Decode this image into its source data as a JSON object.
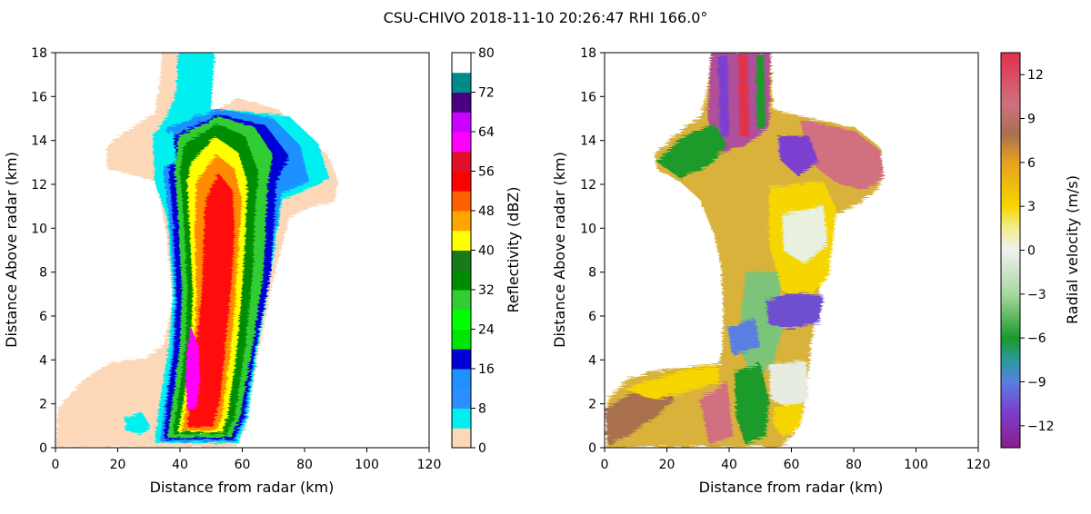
{
  "figure_title": "CSU-CHIVO 2018-11-10 20:26:47 RHI 166.0°",
  "chart_data": [
    {
      "type": "heatmap",
      "variable": "reflectivity",
      "xlabel": "Distance from radar (km)",
      "ylabel": "Distance Above radar  (km)",
      "xlim": [
        0,
        120
      ],
      "ylim": [
        0,
        18
      ],
      "xticks": [
        "0",
        "20",
        "40",
        "60",
        "80",
        "100",
        "120"
      ],
      "yticks": [
        "0",
        "2",
        "4",
        "6",
        "8",
        "10",
        "12",
        "14",
        "16",
        "18"
      ],
      "colorbar": {
        "label": "Reflectivity (dBZ)",
        "range": [
          0,
          80
        ],
        "tick_labels": [
          "0",
          "8",
          "16",
          "24",
          "32",
          "40",
          "48",
          "56",
          "64",
          "72",
          "80"
        ],
        "levels": [
          {
            "from": 0,
            "to": 4,
            "color": "#fcd7b8"
          },
          {
            "from": 4,
            "to": 8,
            "color": "#00f0f0"
          },
          {
            "from": 8,
            "to": 12,
            "color": "#2c8fff"
          },
          {
            "from": 12,
            "to": 16,
            "color": "#1e90ff"
          },
          {
            "from": 16,
            "to": 20,
            "color": "#0000d6"
          },
          {
            "from": 20,
            "to": 24,
            "color": "#00e600"
          },
          {
            "from": 24,
            "to": 28,
            "color": "#00ff00"
          },
          {
            "from": 28,
            "to": 32,
            "color": "#32cd32"
          },
          {
            "from": 32,
            "to": 36,
            "color": "#008c00"
          },
          {
            "from": 36,
            "to": 40,
            "color": "#1a7a1a"
          },
          {
            "from": 40,
            "to": 44,
            "color": "#ffff00"
          },
          {
            "from": 44,
            "to": 48,
            "color": "#ffa500"
          },
          {
            "from": 48,
            "to": 52,
            "color": "#ff6000"
          },
          {
            "from": 52,
            "to": 56,
            "color": "#ff0000"
          },
          {
            "from": 56,
            "to": 60,
            "color": "#e0102a"
          },
          {
            "from": 60,
            "to": 64,
            "color": "#ff00ff"
          },
          {
            "from": 64,
            "to": 68,
            "color": "#cc00ff"
          },
          {
            "from": 68,
            "to": 72,
            "color": "#4b0082"
          },
          {
            "from": 72,
            "to": 76,
            "color": "#008b8b"
          },
          {
            "from": 76,
            "to": 80,
            "color": "#ffffff"
          }
        ]
      }
    },
    {
      "type": "heatmap",
      "variable": "radial_velocity",
      "xlabel": "Distance from radar (km)",
      "ylabel": "Distance Above radar  (km)",
      "xlim": [
        0,
        120
      ],
      "ylim": [
        0,
        18
      ],
      "xticks": [
        "0",
        "20",
        "40",
        "60",
        "80",
        "100",
        "120"
      ],
      "yticks": [
        "0",
        "2",
        "4",
        "6",
        "8",
        "10",
        "12",
        "14",
        "16",
        "18"
      ],
      "colorbar": {
        "label": "Radial velocity (m/s)",
        "range": [
          -13.5,
          13.5
        ],
        "ticks": [
          -12,
          -9,
          -6,
          -3,
          0,
          3,
          6,
          9,
          12
        ],
        "tick_labels": [
          "−12",
          "−9",
          "−6",
          "−3",
          "0",
          "3",
          "6",
          "9",
          "12"
        ],
        "gradient": [
          {
            "v": -13.5,
            "color": "#8a1e8a"
          },
          {
            "v": -11,
            "color": "#7b3fd0"
          },
          {
            "v": -9,
            "color": "#5a7fe0"
          },
          {
            "v": -7.5,
            "color": "#2a9a9a"
          },
          {
            "v": -6,
            "color": "#1a9a2a"
          },
          {
            "v": -3,
            "color": "#a8d8a0"
          },
          {
            "v": 0,
            "color": "#f0f0f0"
          },
          {
            "v": 1.5,
            "color": "#f4ee90"
          },
          {
            "v": 3,
            "color": "#f5d600"
          },
          {
            "v": 6,
            "color": "#e8a020"
          },
          {
            "v": 8,
            "color": "#a87050"
          },
          {
            "v": 10,
            "color": "#d07080"
          },
          {
            "v": 13.5,
            "color": "#e0304a"
          }
        ]
      }
    }
  ]
}
